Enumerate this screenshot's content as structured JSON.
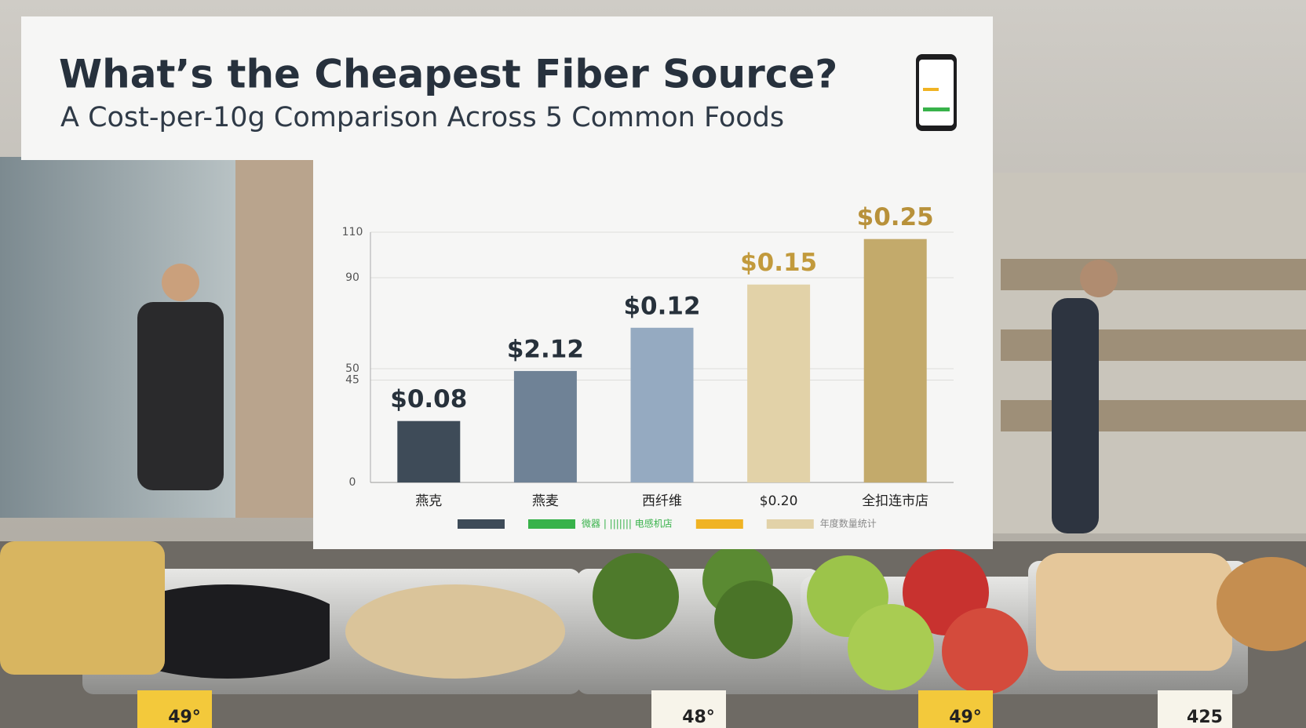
{
  "chart_data": {
    "type": "bar",
    "title": "What’s the Cheapest Fiber Source?",
    "subtitle": "A Cost-per-10g Comparison Across 5 Common Foods",
    "categories": [
      "燕克",
      "燕麦",
      "西纤维",
      "$0.20",
      "全扣连市店"
    ],
    "values": [
      27,
      49,
      68,
      87,
      107
    ],
    "annotations": [
      "$0.08",
      "$2.12",
      "$0.12",
      "$0.15",
      "$0.25"
    ],
    "colors": [
      "#3e4b58",
      "#6f8296",
      "#95aac1",
      "#e2d2a8",
      "#c3aa6b"
    ],
    "annotation_colors": [
      "#27313b",
      "#27313b",
      "#27313b",
      "#c29a3c",
      "#b8913a"
    ],
    "ylim": [
      0,
      110
    ],
    "yticks": [
      0,
      45,
      50,
      90,
      110
    ],
    "grid": true,
    "legend": [
      {
        "color": "#3e4b58"
      },
      {
        "name": "微器 | ||||||| 电感机店",
        "color": "#38b24a"
      },
      {
        "color": "#f0b323"
      },
      {
        "name": "年度数量统计",
        "color": "#e2d2a8"
      }
    ]
  },
  "price_tags": [
    "49°",
    "48°",
    "49°",
    "425"
  ]
}
